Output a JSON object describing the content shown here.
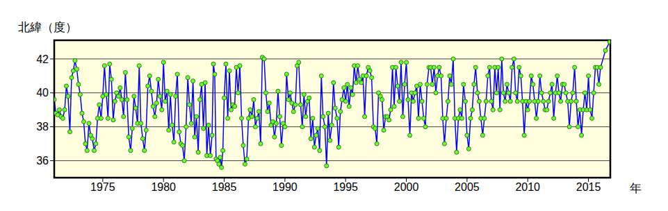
{
  "chart_data": {
    "type": "line",
    "y_label": "北緯（度）",
    "x_label": "年",
    "xlim": [
      1971,
      2016.8
    ],
    "xticks": [
      1975,
      1980,
      1985,
      1990,
      1995,
      2000,
      2005,
      2010,
      2015
    ],
    "ylim": [
      35,
      43.1
    ],
    "yticks": [
      36,
      38,
      40,
      42
    ],
    "grid": true,
    "series": [
      {
        "name": "北緯",
        "color": "#0000ff",
        "marker": "circle",
        "x": [
          1971,
          1971.14,
          1971.29,
          1971.43,
          1971.57,
          1971.71,
          1971.86,
          1972,
          1972.14,
          1972.29,
          1972.43,
          1972.57,
          1972.71,
          1972.86,
          1973,
          1973.14,
          1973.29,
          1973.43,
          1973.57,
          1973.71,
          1973.86,
          1974,
          1974.14,
          1974.29,
          1974.43,
          1974.57,
          1974.71,
          1974.86,
          1975,
          1975.14,
          1975.29,
          1975.43,
          1975.57,
          1975.71,
          1975.86,
          1976,
          1976.14,
          1976.29,
          1976.43,
          1976.57,
          1976.71,
          1976.86,
          1977,
          1977.14,
          1977.29,
          1977.43,
          1977.57,
          1977.71,
          1977.86,
          1978,
          1978.14,
          1978.29,
          1978.43,
          1978.57,
          1978.71,
          1978.86,
          1979,
          1979.14,
          1979.29,
          1979.43,
          1979.57,
          1979.71,
          1979.86,
          1980,
          1980.14,
          1980.29,
          1980.43,
          1980.57,
          1980.71,
          1980.86,
          1981,
          1981.14,
          1981.29,
          1981.43,
          1981.57,
          1981.71,
          1981.86,
          1982,
          1982.14,
          1982.29,
          1982.43,
          1982.57,
          1982.71,
          1982.86,
          1983,
          1983.14,
          1983.29,
          1983.43,
          1983.57,
          1983.71,
          1983.86,
          1984,
          1984.11,
          1984.22,
          1984.33,
          1984.44,
          1984.56,
          1984.67,
          1984.78,
          1984.89,
          1985,
          1985.14,
          1985.29,
          1985.43,
          1985.57,
          1985.71,
          1985.86,
          1986,
          1986.14,
          1986.29,
          1986.43,
          1986.57,
          1986.71,
          1986.86,
          1987,
          1987.14,
          1987.29,
          1987.43,
          1987.57,
          1987.71,
          1987.86,
          1988,
          1988.14,
          1988.29,
          1988.43,
          1988.57,
          1988.71,
          1988.86,
          1989,
          1989.14,
          1989.29,
          1989.43,
          1989.57,
          1989.71,
          1989.86,
          1990,
          1990.14,
          1990.29,
          1990.43,
          1990.57,
          1990.71,
          1990.86,
          1991,
          1991.14,
          1991.29,
          1991.43,
          1991.57,
          1991.71,
          1991.86,
          1992,
          1992.14,
          1992.29,
          1992.43,
          1992.57,
          1992.71,
          1992.86,
          1993,
          1993.14,
          1993.29,
          1993.43,
          1993.57,
          1993.71,
          1993.86,
          1994,
          1994.14,
          1994.29,
          1994.43,
          1994.57,
          1994.71,
          1994.86,
          1995,
          1995.14,
          1995.29,
          1995.43,
          1995.57,
          1995.71,
          1995.86,
          1996,
          1996.14,
          1996.29,
          1996.43,
          1996.57,
          1996.71,
          1996.86,
          1997,
          1997.14,
          1997.29,
          1997.43,
          1997.57,
          1997.71,
          1997.86,
          1998,
          1998.14,
          1998.29,
          1998.43,
          1998.57,
          1998.71,
          1998.86,
          1999,
          1999.14,
          1999.29,
          1999.43,
          1999.57,
          1999.71,
          1999.86,
          2000,
          2000.14,
          2000.29,
          2000.43,
          2000.57,
          2000.71,
          2000.86,
          2001,
          2001.14,
          2001.29,
          2001.43,
          2001.57,
          2001.71,
          2001.86,
          2002,
          2002.14,
          2002.29,
          2002.43,
          2002.57,
          2002.71,
          2002.86,
          2003,
          2003.14,
          2003.29,
          2003.43,
          2003.57,
          2003.71,
          2003.86,
          2004,
          2004.14,
          2004.29,
          2004.43,
          2004.57,
          2004.71,
          2004.86,
          2005,
          2005.14,
          2005.29,
          2005.43,
          2005.57,
          2005.71,
          2005.86,
          2006,
          2006.14,
          2006.29,
          2006.43,
          2006.57,
          2006.71,
          2006.86,
          2007,
          2007.14,
          2007.29,
          2007.43,
          2007.57,
          2007.71,
          2007.86,
          2008,
          2008.14,
          2008.29,
          2008.43,
          2008.57,
          2008.71,
          2008.86,
          2009,
          2009.14,
          2009.29,
          2009.43,
          2009.57,
          2009.71,
          2009.86,
          2010,
          2010.14,
          2010.29,
          2010.43,
          2010.57,
          2010.71,
          2010.86,
          2011,
          2011.14,
          2011.29,
          2011.43,
          2011.57,
          2011.71,
          2011.86,
          2012,
          2012.14,
          2012.29,
          2012.43,
          2012.57,
          2012.71,
          2012.86,
          2013,
          2013.14,
          2013.29,
          2013.43,
          2013.57,
          2013.71,
          2013.86,
          2014,
          2014.14,
          2014.29,
          2014.43,
          2014.57,
          2014.71,
          2014.86,
          2015,
          2015.14,
          2015.29,
          2015.43,
          2015.57,
          2015.71,
          2015.86,
          2016,
          2016.4,
          2016.75
        ],
        "values": [
          39.6,
          38.8,
          38.7,
          39.0,
          38.6,
          38.5,
          39.0,
          40.4,
          39.8,
          37.7,
          40.9,
          41.3,
          41.9,
          41.4,
          40.5,
          39.9,
          38.8,
          38.3,
          37.0,
          36.6,
          38.2,
          37.5,
          37.3,
          36.6,
          37.0,
          38.5,
          39.3,
          38.5,
          39.8,
          41.6,
          39.9,
          38.5,
          41.7,
          40.8,
          38.4,
          39.5,
          40.0,
          39.8,
          40.3,
          39.6,
          38.6,
          41.2,
          39.6,
          37.4,
          36.6,
          37.9,
          39.8,
          39.1,
          38.2,
          41.6,
          38.2,
          37.3,
          36.6,
          37.8,
          40.4,
          41.0,
          40.1,
          39.2,
          38.6,
          39.4,
          40.8,
          39.8,
          39.0,
          41.8,
          39.5,
          40.1,
          37.8,
          39.9,
          38.1,
          37.1,
          39.8,
          41.1,
          37.7,
          37.0,
          36.9,
          36.0,
          38.0,
          40.9,
          39.3,
          38.2,
          40.7,
          37.4,
          38.6,
          36.5,
          39.6,
          40.5,
          37.9,
          40.6,
          36.3,
          38.1,
          36.3,
          37.5,
          41.7,
          41.1,
          36.1,
          36.0,
          35.8,
          36.2,
          35.6,
          36.6,
          39.7,
          41.7,
          38.5,
          41.3,
          39.0,
          39.3,
          39.2,
          41.5,
          40.0,
          41.6,
          38.5,
          36.9,
          35.8,
          36.1,
          38.5,
          39.0,
          38.6,
          39.6,
          38.0,
          38.5,
          38.9,
          37.0,
          42.1,
          42.0,
          40.0,
          38.9,
          39.4,
          38.1,
          38.3,
          37.4,
          38.2,
          40.1,
          38.6,
          36.9,
          38.2,
          38.0,
          41.1,
          39.6,
          40.0,
          39.4,
          38.9,
          39.3,
          41.6,
          41.8,
          39.3,
          38.0,
          39.9,
          38.6,
          39.5,
          39.7,
          37.3,
          38.5,
          36.8,
          37.5,
          37.9,
          36.6,
          41.0,
          38.6,
          38.0,
          35.7,
          38.8,
          37.2,
          38.1,
          40.6,
          39.1,
          38.5,
          36.8,
          38.9,
          39.6,
          40.3,
          39.5,
          40.5,
          39.2,
          40.3,
          39.9,
          41.6,
          40.6,
          41.6,
          40.8,
          40.6,
          41.0,
          38.6,
          41.0,
          41.5,
          41.3,
          40.9,
          38.0,
          37.9,
          37.0,
          40.0,
          39.8,
          39.6,
          37.8,
          38.6,
          38.6,
          38.4,
          39.0,
          41.5,
          39.2,
          41.5,
          40.4,
          39.5,
          41.8,
          38.6,
          40.5,
          41.8,
          39.6,
          37.5,
          40.0,
          39.5,
          40.0,
          40.4,
          38.5,
          40.5,
          39.5,
          38.5,
          38.0,
          40.5,
          41.5,
          41.5,
          40.5,
          41.5,
          40.0,
          41.0,
          41.5,
          41.0,
          38.5,
          37.0,
          38.5,
          39.5,
          41.0,
          40.5,
          42.0,
          38.5,
          36.5,
          38.5,
          39.0,
          38.5,
          40.5,
          39.5,
          37.5,
          36.7,
          38.5,
          39.0,
          40.5,
          41.5,
          40.0,
          39.5,
          38.5,
          37.5,
          38.5,
          39.5,
          41.0,
          41.5,
          39.5,
          39.0,
          41.5,
          40.0,
          41.5,
          39.0,
          42.0,
          40.0,
          39.5,
          40.5,
          40.0,
          39.5,
          41.5,
          42.0,
          40.0,
          39.5,
          41.5,
          41.0,
          39.5,
          37.5,
          39.5,
          39.0,
          39.5,
          41.0,
          40.5,
          39.5,
          38.5,
          39.5,
          41.0,
          40.0,
          39.5,
          39.0,
          39.0,
          39.5,
          40.0,
          40.5,
          38.5,
          40.0,
          41.0,
          40.0,
          39.5,
          40.5,
          40.5,
          40.0,
          39.5,
          38.0,
          39.5,
          40.0,
          41.5,
          39.5,
          38.0,
          39.0,
          37.5,
          39.0,
          40.0,
          39.0,
          41.0,
          39.0,
          38.5,
          40.0,
          41.5,
          41.5,
          40.5,
          41.5,
          42.5,
          43.0
        ]
      }
    ]
  }
}
